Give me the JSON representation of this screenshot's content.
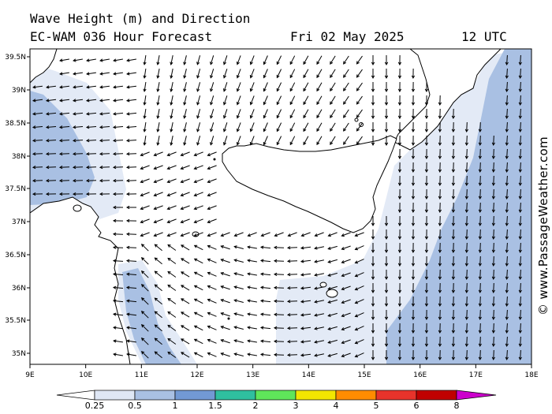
{
  "header": {
    "line1": "Wave Height (m) and Direction",
    "model": "EC-WAM 036 Hour Forecast",
    "date": "Fri 02 May 2025",
    "time": "12 UTC"
  },
  "copyright": "© www.PassageWeather.com",
  "axes": {
    "lat_labels": [
      "39.5N",
      "39N",
      "38.5N",
      "38N",
      "37.5N",
      "37N",
      "36.5N",
      "36N",
      "35.5N",
      "35N"
    ],
    "lon_labels": [
      "9E",
      "10E",
      "11E",
      "12E",
      "13E",
      "14E",
      "15E",
      "16E",
      "17E",
      "18E"
    ]
  },
  "legend": {
    "labels": [
      "0.25",
      "0.5",
      "1",
      "1.5",
      "2",
      "3",
      "4",
      "5",
      "6",
      "8"
    ],
    "colors": [
      "#ffffff",
      "#dfe7f5",
      "#a9c0e3",
      "#7299d4",
      "#2fbf9f",
      "#5fe65a",
      "#f2e600",
      "#ff8c00",
      "#e8332b",
      "#c00000",
      "#cc00cc"
    ]
  },
  "map_colors": {
    "land": "#ffffff",
    "sea_low": "#ffffff",
    "sea_025": "#e3eaf6",
    "sea_05": "#a9c0e3",
    "coast": "#000000"
  }
}
